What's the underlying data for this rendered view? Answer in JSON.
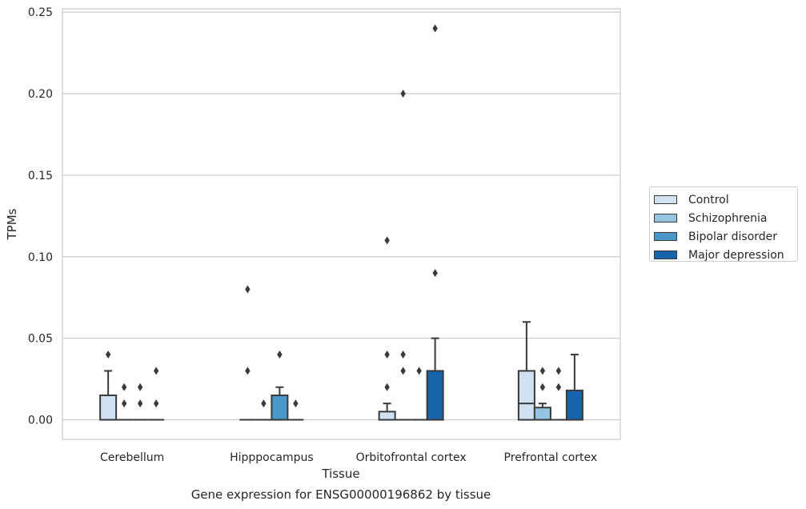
{
  "chart_data": {
    "type": "box",
    "caption": "Gene expression for ENSG00000196862 by tissue",
    "xlabel": "Tissue",
    "ylabel": "TPMs",
    "ylim": [
      -0.012,
      0.252
    ],
    "yticks": [
      0.0,
      0.05,
      0.1,
      0.15,
      0.2,
      0.25
    ],
    "ytick_labels": [
      "0.00",
      "0.05",
      "0.10",
      "0.15",
      "0.20",
      "0.25"
    ],
    "grid": "horizontal",
    "legend_position": "right",
    "categories": [
      "Cerebellum",
      "Hipppocampus",
      "Orbitofrontal cortex",
      "Prefrontal cortex"
    ],
    "series": [
      {
        "name": "Control",
        "color": "#d0e1f2",
        "boxes": [
          {
            "q1": 0.0,
            "median": 0.0,
            "q3": 0.015,
            "whisker_low": 0.0,
            "whisker_high": 0.03,
            "outliers": [
              0.04
            ]
          },
          {
            "q1": 0.0,
            "median": 0.0,
            "q3": 0.0,
            "whisker_low": 0.0,
            "whisker_high": 0.0,
            "outliers": [
              0.03,
              0.08
            ]
          },
          {
            "q1": 0.0,
            "median": 0.0,
            "q3": 0.005,
            "whisker_low": 0.0,
            "whisker_high": 0.01,
            "outliers": [
              0.02,
              0.04,
              0.11
            ]
          },
          {
            "q1": 0.0,
            "median": 0.01,
            "q3": 0.03,
            "whisker_low": 0.0,
            "whisker_high": 0.06,
            "outliers": []
          }
        ]
      },
      {
        "name": "Schizophrenia",
        "color": "#94c4df",
        "boxes": [
          {
            "q1": 0.0,
            "median": 0.0,
            "q3": 0.0,
            "whisker_low": 0.0,
            "whisker_high": 0.0,
            "outliers": [
              0.01,
              0.02
            ]
          },
          {
            "q1": 0.0,
            "median": 0.0,
            "q3": 0.0,
            "whisker_low": 0.0,
            "whisker_high": 0.0,
            "outliers": [
              0.01
            ]
          },
          {
            "q1": 0.0,
            "median": 0.0,
            "q3": 0.0,
            "whisker_low": 0.0,
            "whisker_high": 0.0,
            "outliers": [
              0.03,
              0.04,
              0.2
            ]
          },
          {
            "q1": 0.0,
            "median": 0.0,
            "q3": 0.0075,
            "whisker_low": 0.0,
            "whisker_high": 0.01,
            "outliers": [
              0.02,
              0.03
            ]
          }
        ]
      },
      {
        "name": "Bipolar disorder",
        "color": "#4a98c9",
        "boxes": [
          {
            "q1": 0.0,
            "median": 0.0,
            "q3": 0.0,
            "whisker_low": 0.0,
            "whisker_high": 0.0,
            "outliers": [
              0.01,
              0.02
            ]
          },
          {
            "q1": 0.0,
            "median": 0.0,
            "q3": 0.015,
            "whisker_low": 0.0,
            "whisker_high": 0.02,
            "outliers": [
              0.04
            ]
          },
          {
            "q1": 0.0,
            "median": 0.0,
            "q3": 0.0,
            "whisker_low": 0.0,
            "whisker_high": 0.0,
            "outliers": [
              0.03
            ]
          },
          {
            "q1": 0.0,
            "median": 0.0,
            "q3": 0.0,
            "whisker_low": 0.0,
            "whisker_high": 0.0,
            "outliers": [
              0.02,
              0.03
            ]
          }
        ]
      },
      {
        "name": "Major depression",
        "color": "#1764ab",
        "boxes": [
          {
            "q1": 0.0,
            "median": 0.0,
            "q3": 0.0,
            "whisker_low": 0.0,
            "whisker_high": 0.0,
            "outliers": [
              0.01,
              0.03
            ]
          },
          {
            "q1": 0.0,
            "median": 0.0,
            "q3": 0.0,
            "whisker_low": 0.0,
            "whisker_high": 0.0,
            "outliers": [
              0.01
            ]
          },
          {
            "q1": 0.0,
            "median": 0.0,
            "q3": 0.03,
            "whisker_low": 0.0,
            "whisker_high": 0.05,
            "outliers": [
              0.09,
              0.24
            ]
          },
          {
            "q1": 0.0,
            "median": 0.0,
            "q3": 0.018,
            "whisker_low": 0.0,
            "whisker_high": 0.04,
            "outliers": []
          }
        ]
      }
    ]
  }
}
